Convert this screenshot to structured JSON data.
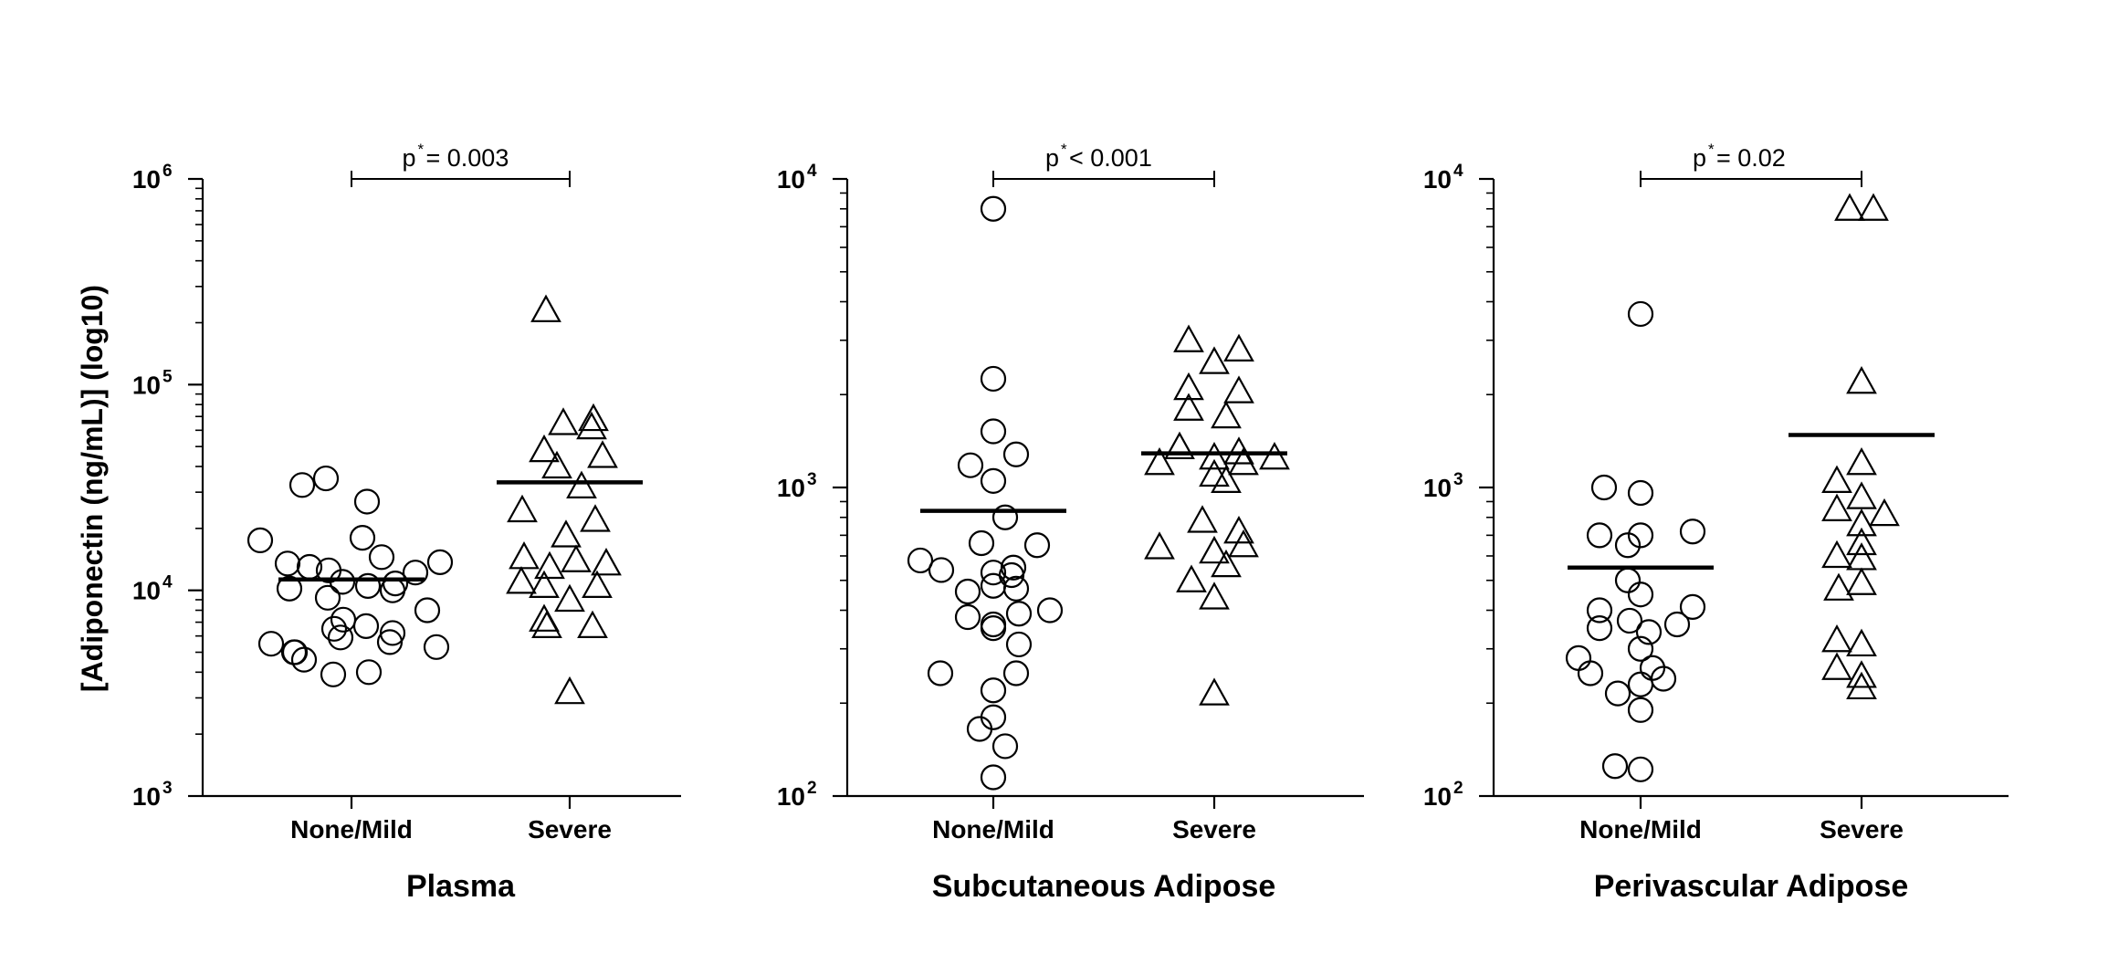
{
  "y_axis_label": "[Adiponectin (ng/mL)] (log10)",
  "colors": {
    "ink": "#000000",
    "background": "#ffffff"
  },
  "chart_data": [
    {
      "type": "scatter",
      "title": "Plasma",
      "ylabel": "[Adiponectin (ng/mL)] (log10)",
      "yscale": "log10",
      "ylim": [
        1000,
        1000000
      ],
      "yticks": [
        {
          "base": "10",
          "exp": "3"
        },
        {
          "base": "10",
          "exp": "4"
        },
        {
          "base": "10",
          "exp": "5"
        },
        {
          "base": "10",
          "exp": "6"
        }
      ],
      "categories": [
        "None/Mild",
        "Severe"
      ],
      "comparison": {
        "label": "p",
        "star": "*",
        "text": "= 0.003"
      },
      "series": [
        {
          "category": "None/Mild",
          "marker": "circle",
          "median": 11300,
          "values": [
            35000,
            27000,
            32500,
            18000,
            17500,
            14500,
            13000,
            12200,
            13500,
            13700,
            12500,
            11000,
            10500,
            10000,
            10200,
            10800,
            9200,
            8000,
            7200,
            6500,
            6700,
            6200,
            5900,
            5600,
            5500,
            5300,
            5000,
            5000,
            4600,
            4000,
            3900
          ]
        },
        {
          "category": "Severe",
          "marker": "triangle",
          "median": 33500,
          "values": [
            230000,
            68000,
            65000,
            62000,
            48000,
            45000,
            40000,
            32000,
            24500,
            22000,
            18500,
            14500,
            14000,
            13500,
            13000,
            11000,
            10500,
            10500,
            9000,
            7200,
            6700,
            6700,
            3200
          ]
        }
      ]
    },
    {
      "type": "scatter",
      "title": "Subcutaneous Adipose",
      "ylabel": "[Adiponectin (ng/mL)] (log10)",
      "yscale": "log10",
      "ylim": [
        100,
        10000
      ],
      "yticks": [
        {
          "base": "10",
          "exp": "2"
        },
        {
          "base": "10",
          "exp": "3"
        },
        {
          "base": "10",
          "exp": "4"
        }
      ],
      "categories": [
        "None/Mild",
        "Severe"
      ],
      "comparison": {
        "label": "p",
        "star": "*",
        "text": "< 0.001"
      },
      "series": [
        {
          "category": "None/Mild",
          "marker": "circle",
          "median": 840,
          "values": [
            8000,
            2250,
            1520,
            1280,
            1180,
            1050,
            800,
            660,
            650,
            580,
            550,
            540,
            530,
            520,
            480,
            470,
            460,
            400,
            390,
            380,
            360,
            350,
            310,
            250,
            250,
            220,
            180,
            165,
            145,
            115
          ]
        },
        {
          "category": "Severe",
          "marker": "triangle",
          "median": 1290,
          "values": [
            3000,
            2800,
            2550,
            2100,
            2050,
            1800,
            1700,
            1350,
            1300,
            1250,
            1250,
            1200,
            1200,
            1100,
            1050,
            780,
            720,
            650,
            640,
            620,
            560,
            500,
            440,
            215
          ]
        }
      ]
    },
    {
      "type": "scatter",
      "title": "Perivascular Adipose",
      "ylabel": "[Adiponectin (ng/mL)] (log10)",
      "yscale": "log10",
      "ylim": [
        100,
        10000
      ],
      "yticks": [
        {
          "base": "10",
          "exp": "2"
        },
        {
          "base": "10",
          "exp": "3"
        },
        {
          "base": "10",
          "exp": "4"
        }
      ],
      "categories": [
        "None/Mild",
        "Severe"
      ],
      "comparison": {
        "label": "p",
        "star": "*",
        "text": "= 0.02"
      },
      "series": [
        {
          "category": "None/Mild",
          "marker": "circle",
          "median": 550,
          "values": [
            3650,
            1000,
            960,
            720,
            700,
            700,
            650,
            500,
            450,
            410,
            400,
            370,
            360,
            350,
            340,
            300,
            280,
            260,
            250,
            240,
            230,
            215,
            190,
            125,
            122
          ]
        },
        {
          "category": "Severe",
          "marker": "triangle",
          "median": 1480,
          "values": [
            8000,
            8000,
            2200,
            1200,
            1050,
            930,
            850,
            820,
            760,
            660,
            600,
            590,
            490,
            470,
            320,
            310,
            260,
            245,
            225
          ]
        }
      ]
    }
  ]
}
